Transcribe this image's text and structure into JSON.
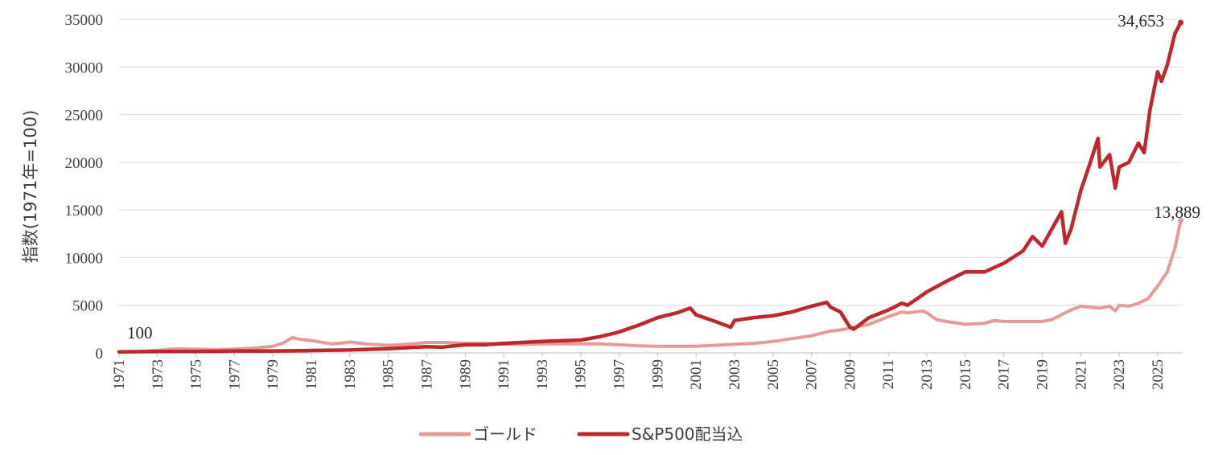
{
  "chart_data": {
    "type": "line",
    "title": "",
    "xlabel": "",
    "ylabel": "指数(1971年=100)",
    "ylim": [
      0,
      35000
    ],
    "yticks": [
      "0",
      "5000",
      "10000",
      "15000",
      "20000",
      "25000",
      "30000",
      "35000"
    ],
    "xlim": [
      1971,
      2026.3
    ],
    "xticks": [
      "1971",
      "1973",
      "1975",
      "1977",
      "1979",
      "1981",
      "1983",
      "1985",
      "1987",
      "1989",
      "1991",
      "1993",
      "1995",
      "1997",
      "1999",
      "2001",
      "2003",
      "2005",
      "2007",
      "2009",
      "2011",
      "2013",
      "2015",
      "2017",
      "2019",
      "2021",
      "2023",
      "2025"
    ],
    "grid": true,
    "legend_position": "bottom",
    "colors": {
      "gold": "#e8999a",
      "sp500": "#c0272d"
    },
    "series": [
      {
        "name": "ゴールド",
        "x": [
          1971,
          1972,
          1973,
          1974,
          1975,
          1976,
          1977,
          1978,
          1979,
          1979.5,
          1980,
          1980.5,
          1981,
          1982,
          1982.5,
          1983,
          1984,
          1985,
          1986,
          1987,
          1988,
          1989,
          1990,
          1991,
          1992,
          1993,
          1994,
          1995,
          1996,
          1997,
          1998,
          1999,
          2000,
          2001,
          2002,
          2003,
          2004,
          2005,
          2006,
          2007,
          2008,
          2008.5,
          2009,
          2010,
          2011,
          2011.7,
          2012,
          2012.8,
          2013,
          2013.5,
          2014,
          2015,
          2016,
          2016.5,
          2017,
          2018,
          2019,
          2019.5,
          2020,
          2020.5,
          2021,
          2022,
          2022.5,
          2022.8,
          2023,
          2023.5,
          2024,
          2024.5,
          2025,
          2025.5,
          2025.9,
          2026.2
        ],
        "values": [
          100,
          150,
          270,
          430,
          390,
          340,
          400,
          500,
          700,
          1000,
          1600,
          1400,
          1300,
          950,
          1000,
          1150,
          900,
          800,
          900,
          1100,
          1100,
          1000,
          1000,
          900,
          900,
          950,
          950,
          950,
          950,
          850,
          750,
          700,
          700,
          700,
          800,
          900,
          1000,
          1200,
          1500,
          1800,
          2300,
          2400,
          2600,
          3000,
          3800,
          4300,
          4200,
          4400,
          4200,
          3500,
          3300,
          3000,
          3100,
          3400,
          3300,
          3300,
          3300,
          3500,
          4000,
          4500,
          4900,
          4700,
          4900,
          4400,
          5000,
          4900,
          5200,
          5700,
          7000,
          8500,
          11000,
          13889
        ]
      },
      {
        "name": "S&P500配当込",
        "x": [
          1971,
          1973,
          1975,
          1977,
          1979,
          1981,
          1983,
          1985,
          1987,
          1987.8,
          1988,
          1989,
          1990,
          1991,
          1993,
          1995,
          1996,
          1997,
          1998,
          1999,
          2000,
          2000.7,
          2001,
          2002,
          2002.8,
          2003,
          2004,
          2005,
          2006,
          2007,
          2007.8,
          2008,
          2008.5,
          2009,
          2009.2,
          2010,
          2011,
          2011.7,
          2012,
          2013,
          2014,
          2015,
          2016,
          2017,
          2018,
          2018.5,
          2019,
          2019.5,
          2020,
          2020.2,
          2020.5,
          2021,
          2021.5,
          2021.9,
          2022,
          2022.5,
          2022.8,
          2023,
          2023.5,
          2024,
          2024.3,
          2024.6,
          2025,
          2025.2,
          2025.5,
          2025.9,
          2026.2
        ],
        "values": [
          100,
          150,
          140,
          200,
          200,
          250,
          300,
          450,
          650,
          600,
          650,
          850,
          850,
          1000,
          1200,
          1350,
          1700,
          2200,
          2900,
          3700,
          4200,
          4700,
          4000,
          3300,
          2700,
          3400,
          3700,
          3900,
          4300,
          4900,
          5300,
          4800,
          4300,
          2700,
          2500,
          3700,
          4500,
          5200,
          5000,
          6400,
          7500,
          8500,
          8500,
          9400,
          10700,
          12200,
          11200,
          13000,
          14800,
          11500,
          13000,
          17000,
          20000,
          22500,
          19500,
          20800,
          17300,
          19500,
          20000,
          22000,
          21000,
          25500,
          29500,
          28500,
          30200,
          33500,
          34653
        ]
      }
    ],
    "annotations": {
      "start": "100",
      "sp500_end": "34,653",
      "gold_end": "13,889"
    }
  }
}
